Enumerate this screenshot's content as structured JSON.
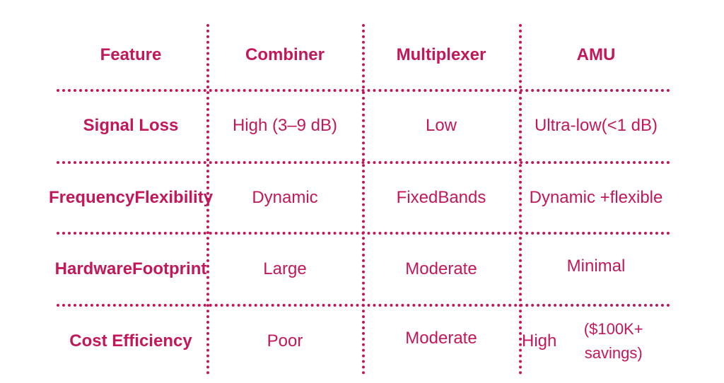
{
  "columns": [
    "Feature",
    "Combiner",
    "Multiplexer",
    "AMU"
  ],
  "rows": [
    {
      "feature": [
        "Signal Loss"
      ],
      "combiner": [
        "High (3–9 dB)"
      ],
      "multiplexer": [
        "Low"
      ],
      "amu": [
        "Ultra-low",
        "(<1 dB)"
      ]
    },
    {
      "feature": [
        "Frequency",
        "Flexibility"
      ],
      "combiner": [
        "Dynamic"
      ],
      "multiplexer": [
        "Fixed",
        "Bands"
      ],
      "amu": [
        "Dynamic +",
        "flexible"
      ]
    },
    {
      "feature": [
        "Hardware",
        "Footprint"
      ],
      "combiner": [
        "Large"
      ],
      "multiplexer": [
        "Moderate"
      ],
      "amu": [
        "Minimal"
      ]
    },
    {
      "feature": [
        "Cost Efficiency"
      ],
      "combiner": [
        "Poor"
      ],
      "multiplexer": [
        "Moderate"
      ],
      "amu": [
        "High",
        "($100K+ savings)"
      ]
    }
  ],
  "colors": {
    "accent": "#c2185b",
    "background": "#ffffff"
  }
}
